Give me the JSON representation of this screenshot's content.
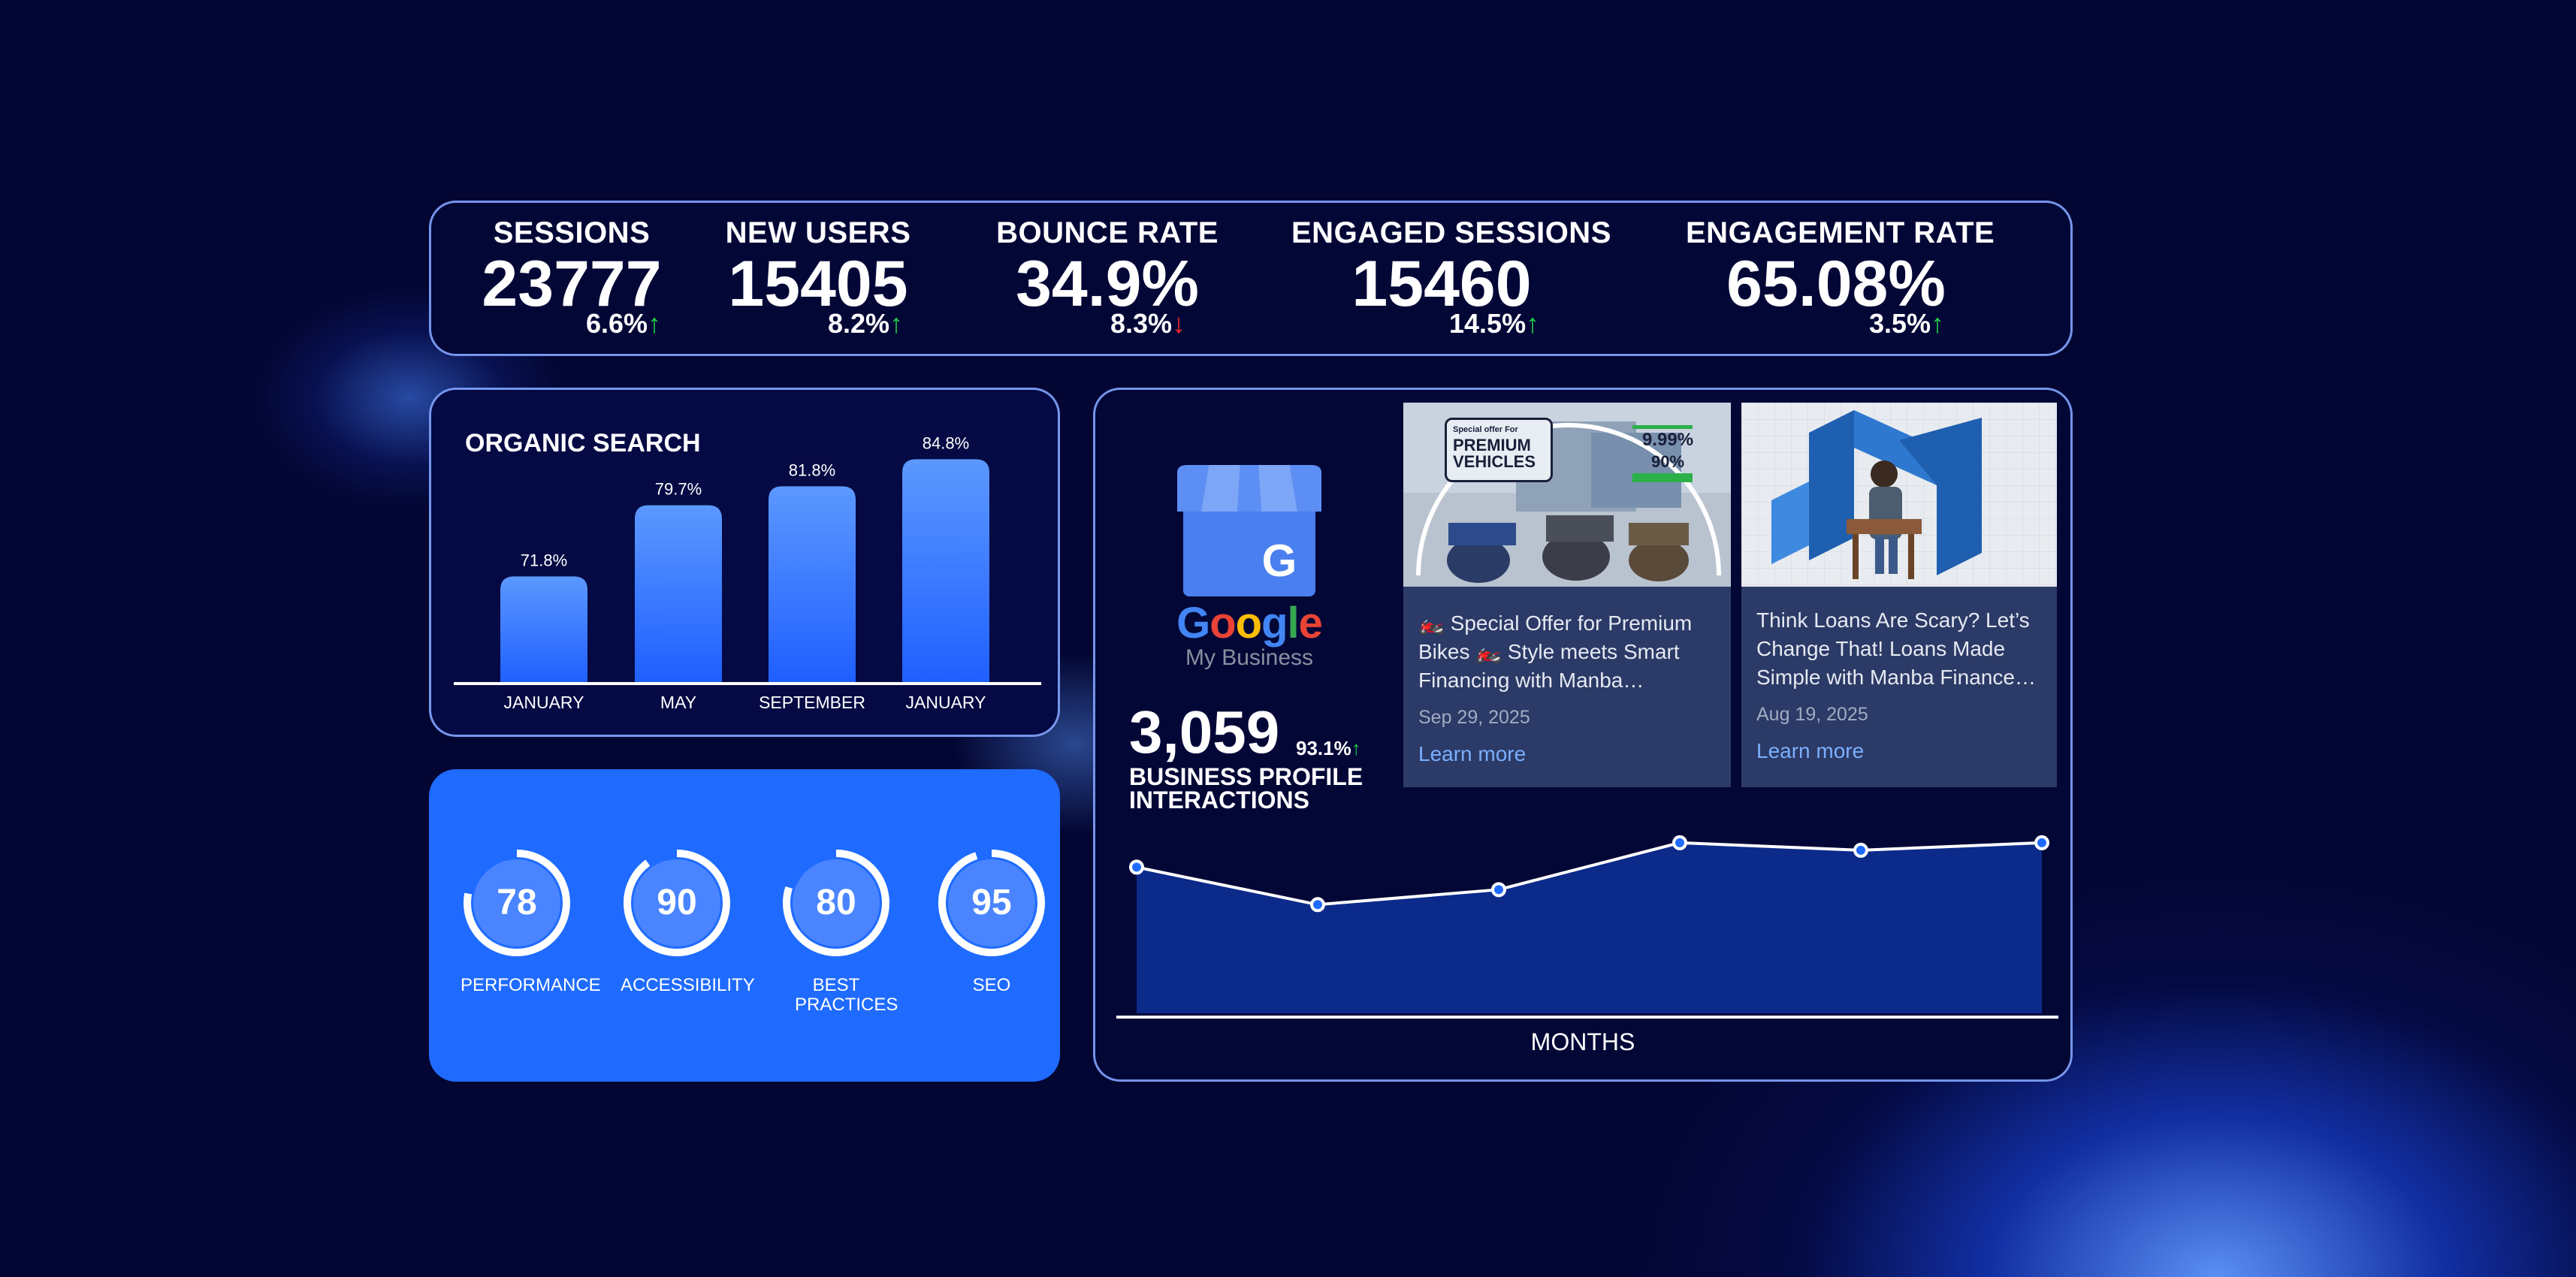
{
  "kpis": [
    {
      "label": "SESSIONS",
      "value": "23777",
      "change": "6.6%",
      "direction": "up"
    },
    {
      "label": "NEW USERS",
      "value": "15405",
      "change": "8.2%",
      "direction": "up"
    },
    {
      "label": "BOUNCE RATE",
      "value": "34.9%",
      "change": "8.3%",
      "direction": "down"
    },
    {
      "label": "ENGAGED SESSIONS",
      "value": "15460",
      "change": "14.5%",
      "direction": "up"
    },
    {
      "label": "ENGAGEMENT RATE",
      "value": "65.08%",
      "change": "3.5%",
      "direction": "up"
    }
  ],
  "arrows": {
    "up": "↑",
    "down": "↓"
  },
  "organic_search": {
    "title": "ORGANIC SEARCH"
  },
  "chart_data": [
    {
      "type": "bar",
      "title": "ORGANIC SEARCH",
      "categories": [
        "JANUARY",
        "MAY",
        "SEPTEMBER",
        "JANUARY"
      ],
      "values": [
        71.8,
        79.7,
        81.8,
        84.8
      ],
      "labels": [
        "71.8%",
        "79.7%",
        "81.8%",
        "84.8%"
      ],
      "ylim": [
        60,
        85
      ],
      "grid": false
    },
    {
      "type": "line",
      "xlabel": "MONTHS",
      "x": [
        1,
        2,
        3,
        4,
        5,
        6
      ],
      "values": [
        0.78,
        0.58,
        0.66,
        0.91,
        0.87,
        0.91
      ],
      "ylim": [
        0,
        1.05
      ],
      "grid": false
    }
  ],
  "lighthouse": {
    "scores": [
      {
        "label": "PERFORMANCE",
        "value": 78
      },
      {
        "label": "ACCESSIBILITY",
        "value": 90
      },
      {
        "label": "BEST PRACTICES",
        "value": 80
      },
      {
        "label": "SEO",
        "value": 95
      }
    ]
  },
  "gmb": {
    "logo_word": "Google",
    "logo_sub": "My Business",
    "interactions_value": "3,059",
    "interactions_change": "93.1%",
    "interactions_label": "BUSINESS PROFILE INTERACTIONS",
    "months_label": "MONTHS",
    "posts": [
      {
        "text": "🏍️ Special Offer for Premium Bikes 🏍️ Style meets Smart Financing with Manba…",
        "date": "Sep 29, 2025",
        "link": "Learn more",
        "image": {
          "line1": "Special offer For",
          "line2": "PREMIUM",
          "line3": "VEHICLES",
          "rate1": "9.99%",
          "rate2": "90%"
        }
      },
      {
        "text": "Think Loans Are Scary? Let’s Change That! Loans Made Simple with Manba Finance…",
        "date": "Aug 19, 2025",
        "link": "Learn more"
      }
    ]
  },
  "colors": {
    "accent": "#1f6bff",
    "positive": "#21d14a",
    "negative": "#ff2a2a",
    "background": "#030632"
  }
}
